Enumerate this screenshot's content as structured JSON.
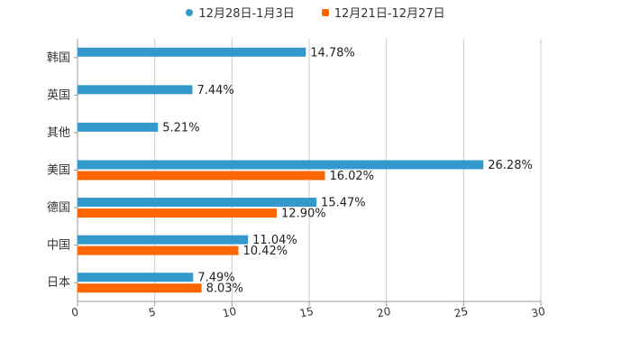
{
  "colors": {
    "series1": "#3399cc",
    "series2": "#ff6600",
    "grid": "#cccccc",
    "axis": "#999999",
    "text": "#333333"
  },
  "legend": {
    "series1_label": "12月28日-1月3日",
    "series2_label": "12月21日-12月27日"
  },
  "chart_data": {
    "type": "bar",
    "orientation": "horizontal",
    "categories": [
      "韩国",
      "英国",
      "其他",
      "美国",
      "德国",
      "中国",
      "日本"
    ],
    "series": [
      {
        "name": "12月28日-1月3日",
        "values": [
          14.78,
          7.44,
          5.21,
          26.28,
          15.47,
          11.04,
          7.49
        ],
        "labels": [
          "14.78%",
          "7.44%",
          "5.21%",
          "26.28%",
          "15.47%",
          "11.04%",
          "7.49%"
        ]
      },
      {
        "name": "12月21日-12月27日",
        "values": [
          null,
          null,
          null,
          16.02,
          12.9,
          10.42,
          8.03
        ],
        "labels": [
          "",
          "",
          "",
          "16.02%",
          "12.90%",
          "10.42%",
          "8.03%"
        ]
      }
    ],
    "x_ticks": [
      "0",
      "5",
      "10",
      "15",
      "20",
      "25",
      "30"
    ],
    "xlim": [
      0,
      30
    ],
    "grid": true,
    "legend_position": "top-center"
  }
}
